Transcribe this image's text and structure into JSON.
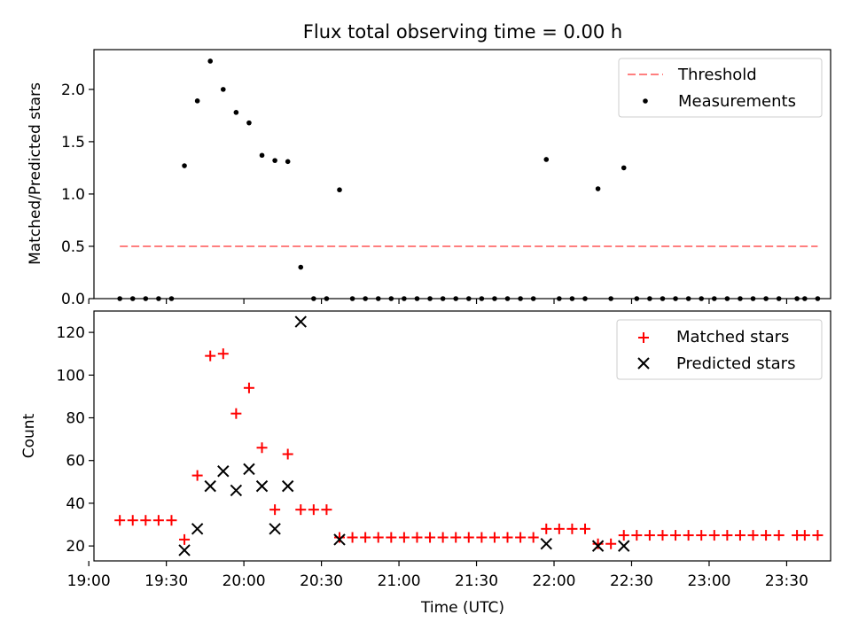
{
  "chart_data": [
    {
      "type": "scatter",
      "title": "Flux total observing time = 0.00 h",
      "ylabel": "Matched/Predicted stars",
      "ylim": [
        0,
        2.38
      ],
      "xlim": [
        "19:02",
        "23:47"
      ],
      "yticks": [
        0,
        0.5,
        1.0,
        1.5,
        2.0
      ],
      "ytick_labels": [
        "0.0",
        "0.5",
        "1.0",
        "1.5",
        "2.0"
      ],
      "legend": "top-right",
      "threshold": {
        "name": "Threshold",
        "value": 0.5,
        "x_start": "19:12",
        "x_end": "23:42",
        "color": "#ff7f7f"
      },
      "series": [
        {
          "name": "Measurements",
          "color": "#000000",
          "x": [
            "19:12",
            "19:17",
            "19:22",
            "19:27",
            "19:32",
            "19:37",
            "19:42",
            "19:47",
            "19:52",
            "19:57",
            "20:02",
            "20:07",
            "20:12",
            "20:17",
            "20:22",
            "20:27",
            "20:32",
            "20:37",
            "20:42",
            "20:47",
            "20:52",
            "20:57",
            "21:02",
            "21:07",
            "21:12",
            "21:17",
            "21:22",
            "21:27",
            "21:32",
            "21:37",
            "21:42",
            "21:47",
            "21:52",
            "21:57",
            "22:02",
            "22:07",
            "22:12",
            "22:17",
            "22:22",
            "22:27",
            "22:32",
            "22:37",
            "22:42",
            "22:47",
            "22:52",
            "22:57",
            "23:02",
            "23:07",
            "23:12",
            "23:17",
            "23:22",
            "23:27",
            "23:34",
            "23:37",
            "23:42"
          ],
          "y": [
            0,
            0,
            0,
            0,
            0,
            1.27,
            1.89,
            2.27,
            2.0,
            1.78,
            1.68,
            1.37,
            1.32,
            1.31,
            0.3,
            0,
            0,
            1.04,
            0,
            0,
            0,
            0,
            0,
            0,
            0,
            0,
            0,
            0,
            0,
            0,
            0,
            0,
            0,
            1.33,
            0,
            0,
            0,
            1.05,
            0,
            1.25,
            0,
            0,
            0,
            0,
            0,
            0,
            0,
            0,
            0,
            0,
            0,
            0,
            0,
            0,
            0
          ]
        }
      ]
    },
    {
      "type": "scatter",
      "xlabel": "Time (UTC)",
      "ylabel": "Count",
      "ylim": [
        13,
        130
      ],
      "xlim": [
        "19:02",
        "23:47"
      ],
      "yticks": [
        20,
        40,
        60,
        80,
        100,
        120
      ],
      "xticks": [
        "19:00",
        "19:30",
        "20:00",
        "20:30",
        "21:00",
        "21:30",
        "22:00",
        "22:30",
        "23:00",
        "23:30"
      ],
      "legend": "top-right",
      "series": [
        {
          "name": "Matched stars",
          "color": "#ff0000",
          "marker": "+",
          "x": [
            "19:12",
            "19:17",
            "19:22",
            "19:27",
            "19:32",
            "19:37",
            "19:42",
            "19:47",
            "19:52",
            "19:57",
            "20:02",
            "20:07",
            "20:12",
            "20:17",
            "20:22",
            "20:27",
            "20:32",
            "20:37",
            "20:42",
            "20:47",
            "20:52",
            "20:57",
            "21:02",
            "21:07",
            "21:12",
            "21:17",
            "21:22",
            "21:27",
            "21:32",
            "21:37",
            "21:42",
            "21:47",
            "21:52",
            "21:57",
            "22:02",
            "22:07",
            "22:12",
            "22:17",
            "22:22",
            "22:27",
            "22:32",
            "22:37",
            "22:42",
            "22:47",
            "22:52",
            "22:57",
            "23:02",
            "23:07",
            "23:12",
            "23:17",
            "23:22",
            "23:27",
            "23:34",
            "23:37",
            "23:42"
          ],
          "y": [
            32,
            32,
            32,
            32,
            32,
            23,
            53,
            109,
            110,
            82,
            94,
            66,
            37,
            63,
            37,
            37,
            37,
            24,
            24,
            24,
            24,
            24,
            24,
            24,
            24,
            24,
            24,
            24,
            24,
            24,
            24,
            24,
            24,
            28,
            28,
            28,
            28,
            21,
            21,
            25,
            25,
            25,
            25,
            25,
            25,
            25,
            25,
            25,
            25,
            25,
            25,
            25,
            25,
            25,
            25
          ]
        },
        {
          "name": "Predicted stars",
          "color": "#000000",
          "marker": "x",
          "x": [
            "19:37",
            "19:42",
            "19:47",
            "19:52",
            "19:57",
            "20:02",
            "20:07",
            "20:12",
            "20:17",
            "20:22",
            "20:37",
            "21:57",
            "22:17",
            "22:27"
          ],
          "y": [
            18,
            28,
            48,
            55,
            46,
            56,
            48,
            28,
            48,
            125,
            23,
            21,
            20,
            20
          ]
        }
      ]
    }
  ]
}
